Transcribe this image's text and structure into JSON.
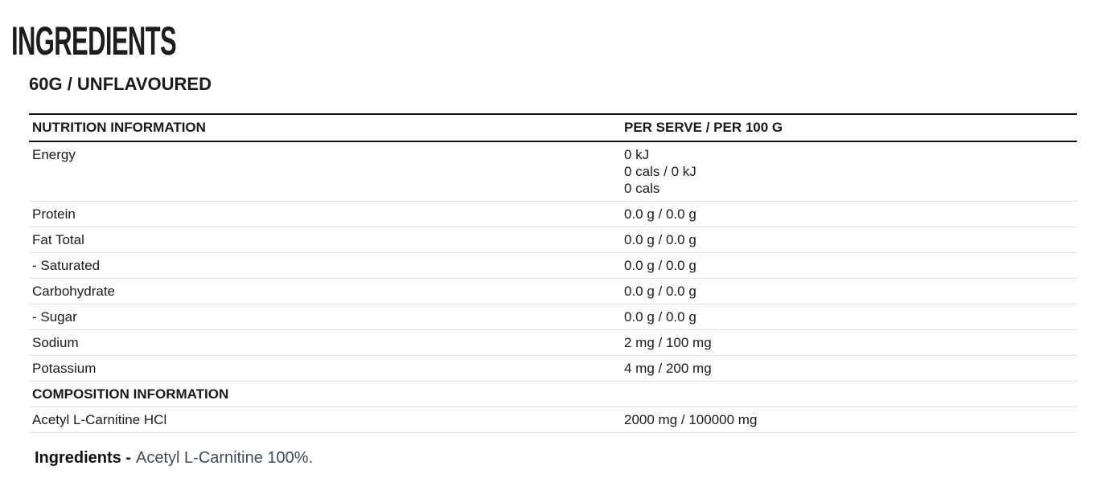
{
  "title": "INGREDIENTS",
  "subtitle": "60G / UNFLAVOURED",
  "table": {
    "header": [
      "NUTRITION INFORMATION",
      "PER SERVE / PER 100 G"
    ],
    "rows": [
      [
        "Energy",
        [
          "0 kJ",
          "0 cals / 0 kJ",
          "0 cals"
        ]
      ],
      [
        "Protein",
        "0.0 g / 0.0 g"
      ],
      [
        "Fat Total",
        "0.0 g / 0.0 g"
      ],
      [
        "- Saturated",
        "0.0 g / 0.0 g"
      ],
      [
        "Carbohydrate",
        "0.0 g / 0.0 g"
      ],
      [
        "- Sugar",
        "0.0 g / 0.0 g"
      ],
      [
        "Sodium",
        "2 mg / 100 mg"
      ],
      [
        "Potassium",
        "4 mg / 200 mg"
      ]
    ],
    "section": "COMPOSITION INFORMATION",
    "section_rows": [
      [
        "Acetyl L-Carnitine HCl",
        "2000 mg / 100000 mg"
      ]
    ]
  },
  "ingredients": {
    "label": "Ingredients -",
    "text": "Acetyl L-Carnitine 100%."
  }
}
